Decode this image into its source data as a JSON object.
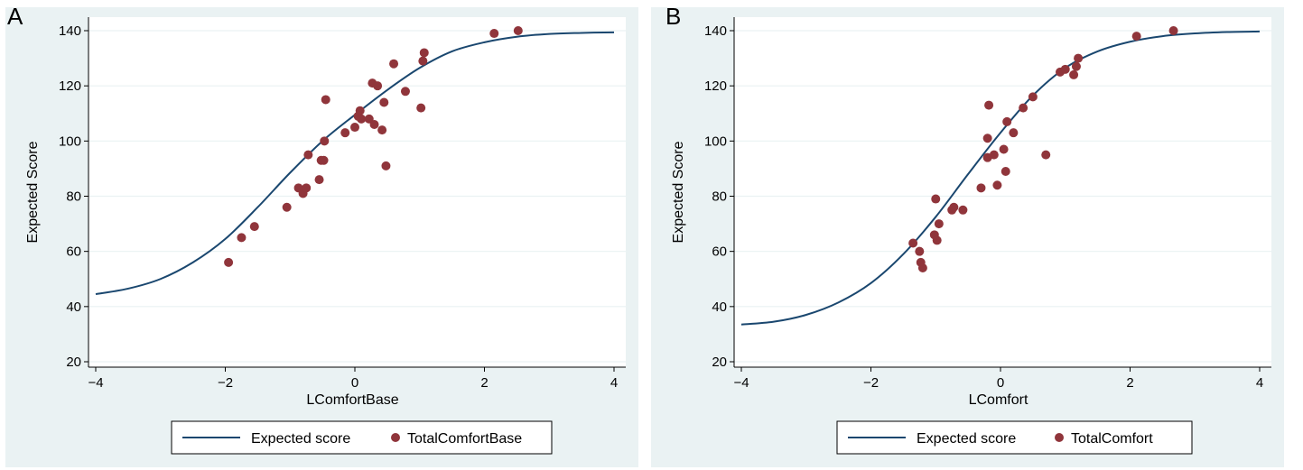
{
  "colors": {
    "outer_bg": "#eaf2f3",
    "plot_bg": "#ffffff",
    "grid": "#eaf2f3",
    "line": "#1a476f",
    "marker": "#90353b"
  },
  "chart_data": [
    {
      "panel": "A",
      "type": "scatter",
      "xlabel": "LComfortBase",
      "ylabel": "Expected Score",
      "xlim": [
        -4,
        4
      ],
      "ylim": [
        20,
        140
      ],
      "xticks": [
        "−4",
        "−2",
        "0",
        "2",
        "4"
      ],
      "yticks": [
        "20",
        "40",
        "60",
        "80",
        "100",
        "120",
        "140"
      ],
      "grid": true,
      "legend_position": "bottom",
      "series": [
        {
          "name": "Expected score",
          "kind": "line",
          "x": [
            -4,
            -3.5,
            -3,
            -2.5,
            -2,
            -1.5,
            -1,
            -0.5,
            0,
            0.5,
            1,
            1.5,
            2,
            2.5,
            3,
            3.5,
            4
          ],
          "y": [
            44.5,
            46.5,
            50,
            56,
            64.5,
            76,
            88.5,
            100,
            109.5,
            118.5,
            126.5,
            132.5,
            135.8,
            137.8,
            138.8,
            139.2,
            139.4
          ]
        },
        {
          "name": "TotalComfortBase",
          "kind": "scatter",
          "x": [
            -1.95,
            -1.75,
            -1.55,
            -1.05,
            -0.87,
            -0.8,
            -0.75,
            -0.72,
            -0.55,
            -0.52,
            -0.48,
            -0.47,
            -0.45,
            -0.15,
            0.0,
            0.05,
            0.08,
            0.1,
            0.22,
            0.27,
            0.3,
            0.35,
            0.42,
            0.45,
            0.48,
            0.6,
            0.78,
            1.02,
            1.05,
            1.07,
            2.15,
            2.52
          ],
          "y": [
            56,
            65,
            69,
            76,
            83,
            81,
            83,
            95,
            86,
            93,
            93,
            100,
            115,
            103,
            105,
            109,
            111,
            108,
            108,
            121,
            106,
            120,
            104,
            114,
            91,
            128,
            118,
            112,
            129,
            132,
            139,
            140
          ]
        }
      ]
    },
    {
      "panel": "B",
      "type": "scatter",
      "xlabel": "LComfort",
      "ylabel": "Expected Score",
      "xlim": [
        -4,
        4
      ],
      "ylim": [
        20,
        140
      ],
      "xticks": [
        "−4",
        "−2",
        "0",
        "2",
        "4"
      ],
      "yticks": [
        "20",
        "40",
        "60",
        "80",
        "100",
        "120",
        "140"
      ],
      "grid": true,
      "legend_position": "bottom",
      "series": [
        {
          "name": "Expected score",
          "kind": "line",
          "x": [
            -4,
            -3.5,
            -3,
            -2.5,
            -2,
            -1.5,
            -1,
            -0.5,
            0,
            0.5,
            1,
            1.5,
            2,
            2.5,
            3,
            3.5,
            4
          ],
          "y": [
            33.5,
            34.5,
            37,
            41.5,
            48.5,
            59,
            72.5,
            88,
            103,
            116.5,
            126.5,
            132.5,
            136,
            138,
            139,
            139.5,
            139.7
          ]
        },
        {
          "name": "TotalComfort",
          "kind": "scatter",
          "x": [
            -1.35,
            -1.25,
            -1.23,
            -1.2,
            -1.02,
            -1.0,
            -0.98,
            -0.95,
            -0.75,
            -0.72,
            -0.58,
            -0.3,
            -0.2,
            -0.2,
            -0.18,
            -0.1,
            -0.05,
            0.05,
            0.08,
            0.1,
            0.2,
            0.35,
            0.5,
            0.7,
            0.92,
            1.0,
            1.13,
            1.17,
            1.2,
            2.1,
            2.67
          ],
          "y": [
            63,
            60,
            56,
            54,
            66,
            79,
            64,
            70,
            75,
            76,
            75,
            83,
            94,
            101,
            113,
            95,
            84,
            97,
            89,
            107,
            103,
            112,
            116,
            95,
            125,
            126,
            124,
            127,
            130,
            138,
            140
          ]
        }
      ]
    }
  ]
}
